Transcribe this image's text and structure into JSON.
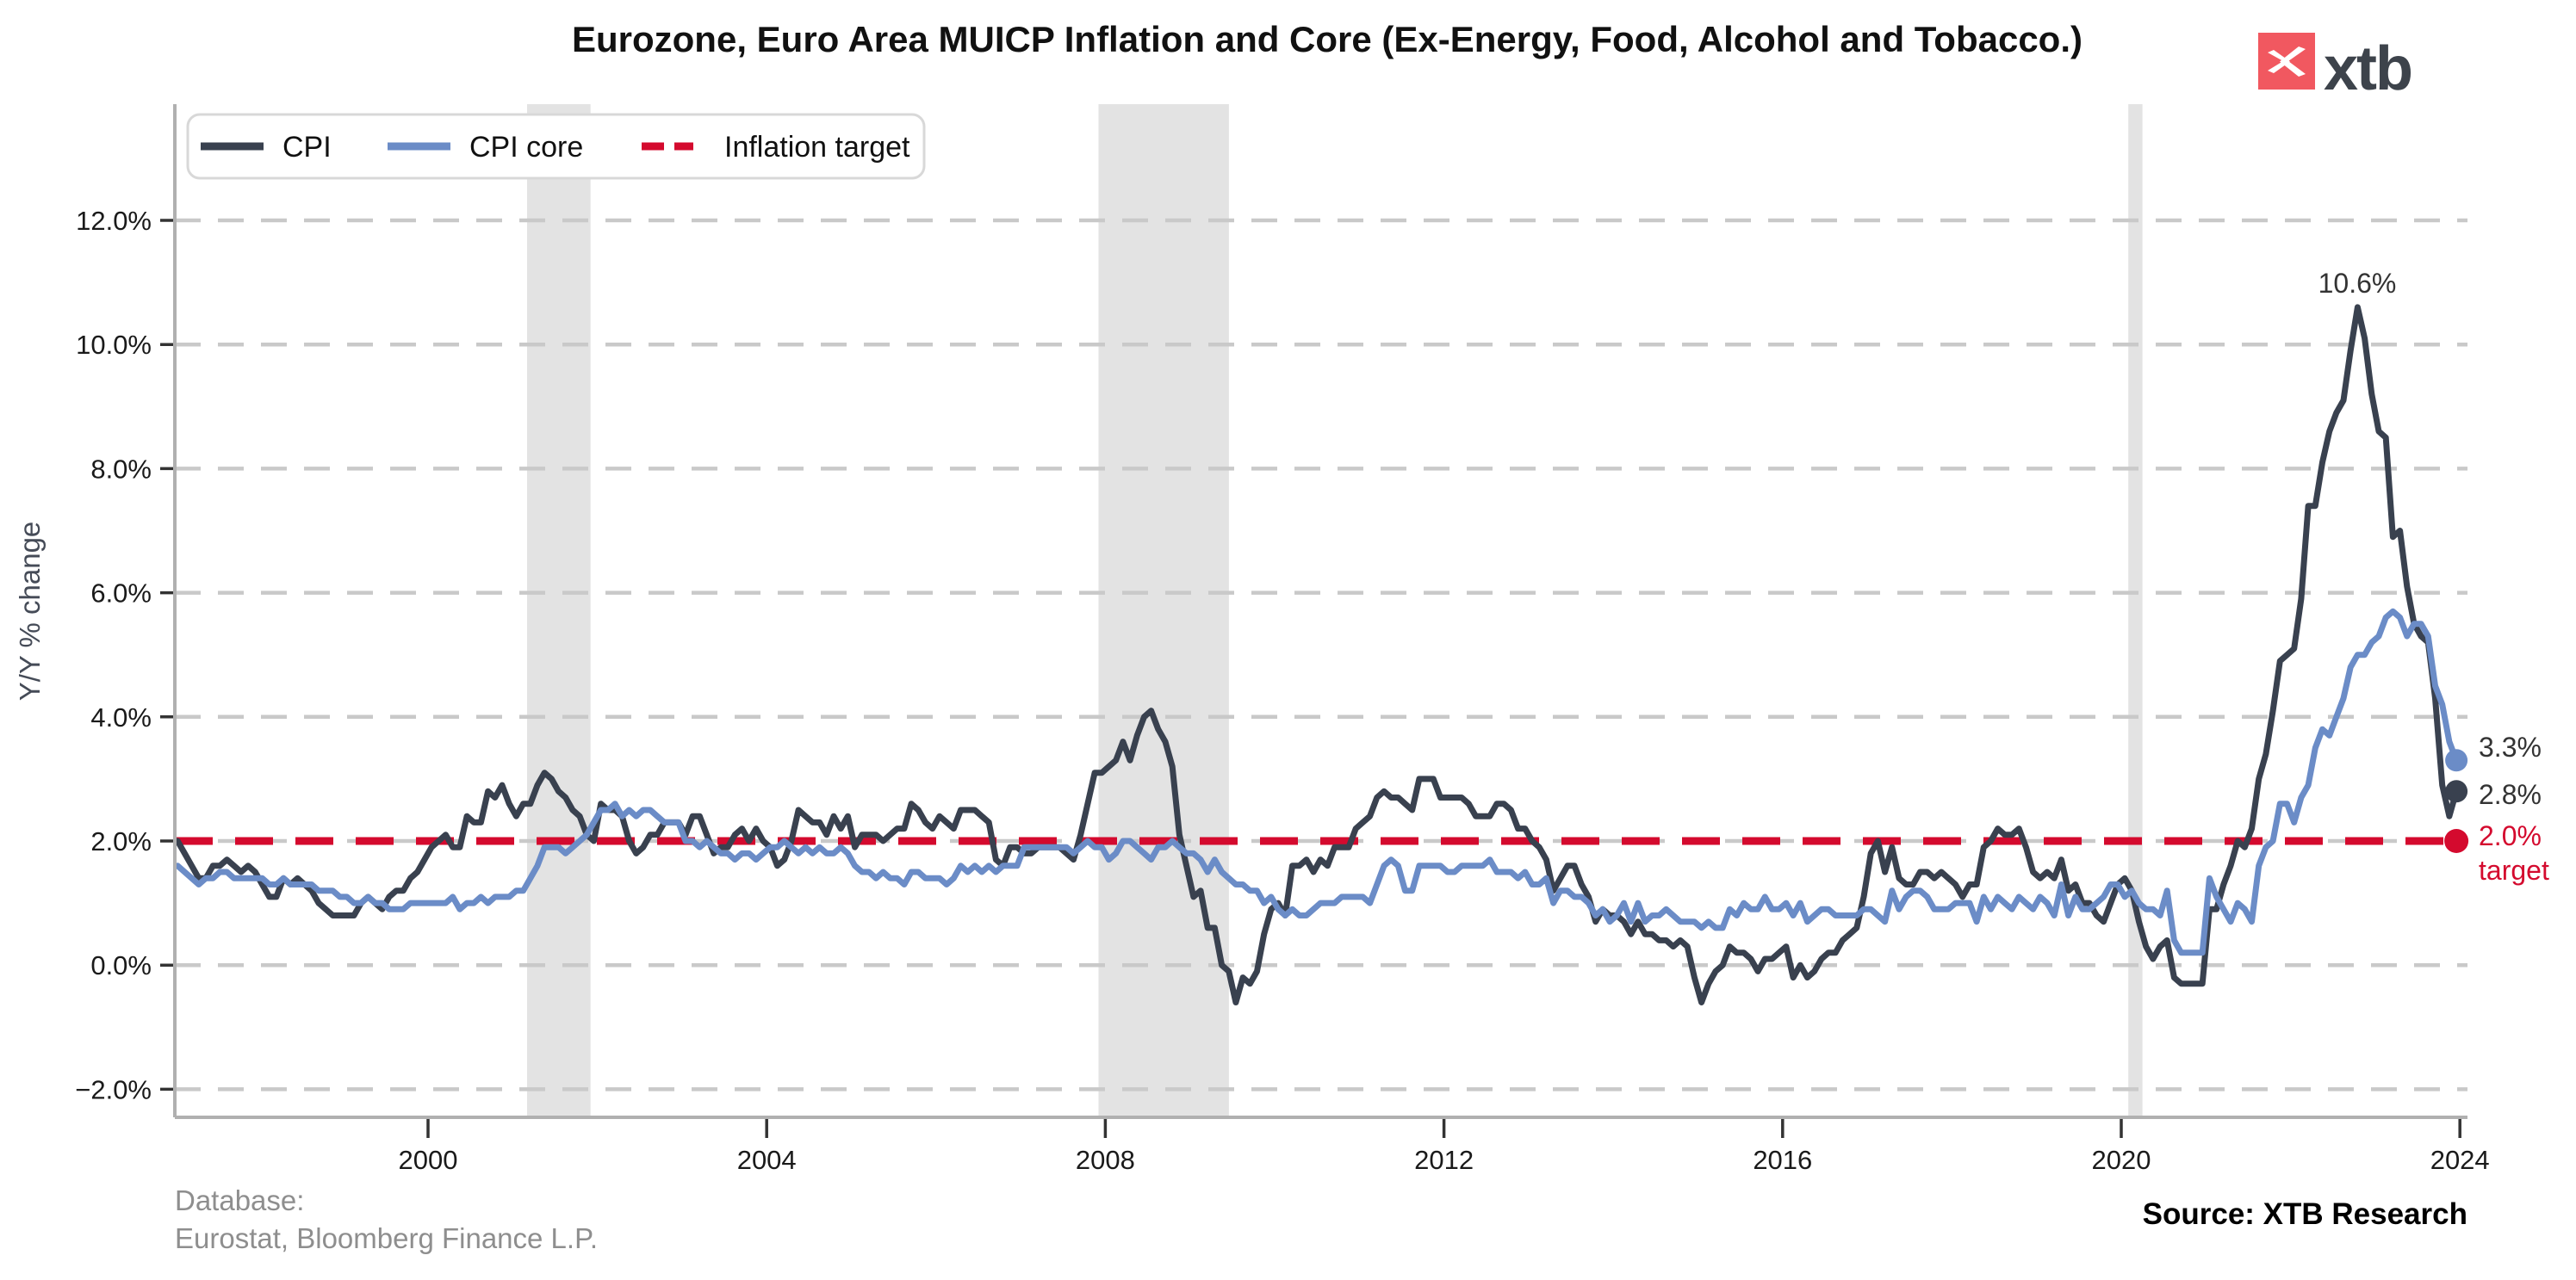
{
  "title": "Eurozone, Euro Area MUICP Inflation and Core (Ex-Energy, Food, Alcohol and Tobacco.)",
  "header_logo": {
    "brand_text": "xtb",
    "square_color": "#f15860",
    "text_color": "#3d434b"
  },
  "legend": {
    "items": [
      {
        "label": "CPI",
        "color": "#39414f",
        "style": "solid"
      },
      {
        "label": "CPI core",
        "color": "#6b8cc7",
        "style": "solid"
      },
      {
        "label": "Inflation target",
        "color": "#d40a2e",
        "style": "dashed"
      }
    ]
  },
  "y_axis": {
    "label": "Y/Y % change",
    "ticks": [
      "12.0%",
      "10.0%",
      "8.0%",
      "6.0%",
      "4.0%",
      "2.0%",
      "0.0%",
      "−2.0%"
    ]
  },
  "x_axis": {
    "ticks": [
      "2000",
      "2004",
      "2008",
      "2012",
      "2016",
      "2020",
      "2024"
    ]
  },
  "annotations": {
    "peak_label": "10.6%",
    "core_end_label": "3.3%",
    "cpi_end_label": "2.8%",
    "target_value_label": "2.0%",
    "target_word": "target"
  },
  "footer": {
    "database_label": "Database:",
    "database_sources": "Eurostat, Bloomberg Finance L.P.",
    "source_note": "Source: XTB Research"
  },
  "chart_data": {
    "type": "line",
    "title": "Eurozone, Euro Area MUICP Inflation and Core (Ex-Energy, Food, Alcohol and Tobacco.)",
    "ylabel": "Y/Y % change",
    "xlabel": "",
    "start_year": 1997,
    "frequency": "monthly",
    "ylim": [
      -2.45,
      13.9
    ],
    "grid_values": [
      12,
      10,
      8,
      6,
      4,
      2,
      0,
      -2
    ],
    "x_tick_years": [
      2000,
      2004,
      2008,
      2012,
      2016,
      2020,
      2024
    ],
    "grid_on": true,
    "legend_position": "upper left",
    "band_color": "#e3e3e3",
    "recession_bands": [
      [
        2001.17,
        2001.92
      ],
      [
        2007.92,
        2009.46
      ],
      [
        2020.083,
        2020.25
      ]
    ],
    "target": {
      "value": 2.0,
      "color": "#d40a2e",
      "label": "2.0% target"
    },
    "end_labels": {
      "cpi": "2.8%",
      "core": "3.3%",
      "peak": "10.6%"
    },
    "series": [
      {
        "name": "CPI",
        "color": "#39414f",
        "values": [
          2.0,
          1.8,
          1.6,
          1.4,
          1.4,
          1.6,
          1.6,
          1.7,
          1.6,
          1.5,
          1.6,
          1.5,
          1.3,
          1.1,
          1.1,
          1.4,
          1.3,
          1.4,
          1.3,
          1.2,
          1.0,
          0.9,
          0.8,
          0.8,
          0.8,
          0.8,
          1.0,
          1.1,
          1.0,
          0.9,
          1.1,
          1.2,
          1.2,
          1.4,
          1.5,
          1.7,
          1.9,
          2.0,
          2.1,
          1.9,
          1.9,
          2.4,
          2.3,
          2.3,
          2.8,
          2.7,
          2.9,
          2.6,
          2.4,
          2.6,
          2.6,
          2.9,
          3.1,
          3.0,
          2.8,
          2.7,
          2.5,
          2.4,
          2.1,
          2.0,
          2.6,
          2.5,
          2.5,
          2.4,
          2.0,
          1.8,
          1.9,
          2.1,
          2.1,
          2.3,
          2.3,
          2.3,
          2.1,
          2.4,
          2.4,
          2.1,
          1.8,
          1.9,
          1.9,
          2.1,
          2.2,
          2.0,
          2.2,
          2.0,
          1.9,
          1.6,
          1.7,
          2.0,
          2.5,
          2.4,
          2.3,
          2.3,
          2.1,
          2.4,
          2.2,
          2.4,
          1.9,
          2.1,
          2.1,
          2.1,
          2.0,
          2.1,
          2.2,
          2.2,
          2.6,
          2.5,
          2.3,
          2.2,
          2.4,
          2.3,
          2.2,
          2.5,
          2.5,
          2.5,
          2.4,
          2.3,
          1.7,
          1.6,
          1.9,
          1.9,
          1.8,
          1.8,
          1.9,
          1.9,
          1.9,
          1.9,
          1.8,
          1.7,
          2.1,
          2.6,
          3.1,
          3.1,
          3.2,
          3.3,
          3.6,
          3.3,
          3.7,
          4.0,
          4.1,
          3.8,
          3.6,
          3.2,
          2.1,
          1.6,
          1.1,
          1.2,
          0.6,
          0.6,
          0.0,
          -0.1,
          -0.6,
          -0.2,
          -0.3,
          -0.1,
          0.5,
          0.9,
          1.0,
          0.8,
          1.6,
          1.6,
          1.7,
          1.5,
          1.7,
          1.6,
          1.9,
          1.9,
          1.9,
          2.2,
          2.3,
          2.4,
          2.7,
          2.8,
          2.7,
          2.7,
          2.6,
          2.5,
          3.0,
          3.0,
          3.0,
          2.7,
          2.7,
          2.7,
          2.7,
          2.6,
          2.4,
          2.4,
          2.4,
          2.6,
          2.6,
          2.5,
          2.2,
          2.2,
          2.0,
          1.9,
          1.7,
          1.2,
          1.4,
          1.6,
          1.6,
          1.3,
          1.1,
          0.7,
          0.9,
          0.8,
          0.8,
          0.7,
          0.5,
          0.7,
          0.5,
          0.5,
          0.4,
          0.4,
          0.3,
          0.4,
          0.3,
          -0.2,
          -0.6,
          -0.3,
          -0.1,
          0.0,
          0.3,
          0.2,
          0.2,
          0.1,
          -0.1,
          0.1,
          0.1,
          0.2,
          0.3,
          -0.2,
          0.0,
          -0.2,
          -0.1,
          0.1,
          0.2,
          0.2,
          0.4,
          0.5,
          0.6,
          1.1,
          1.8,
          2.0,
          1.5,
          1.9,
          1.4,
          1.3,
          1.3,
          1.5,
          1.5,
          1.4,
          1.5,
          1.4,
          1.3,
          1.1,
          1.3,
          1.3,
          1.9,
          2.0,
          2.2,
          2.1,
          2.1,
          2.2,
          1.9,
          1.5,
          1.4,
          1.5,
          1.4,
          1.7,
          1.2,
          1.3,
          1.0,
          1.0,
          0.8,
          0.7,
          1.0,
          1.3,
          1.4,
          1.2,
          0.7,
          0.3,
          0.1,
          0.3,
          0.4,
          -0.2,
          -0.3,
          -0.3,
          -0.3,
          -0.3,
          0.9,
          0.9,
          1.3,
          1.6,
          2.0,
          1.9,
          2.2,
          3.0,
          3.4,
          4.1,
          4.9,
          5.0,
          5.1,
          5.9,
          7.4,
          7.4,
          8.1,
          8.6,
          8.9,
          9.1,
          9.9,
          10.6,
          10.1,
          9.2,
          8.6,
          8.5,
          6.9,
          7.0,
          6.1,
          5.5,
          5.3,
          5.2,
          4.3,
          2.9,
          2.4,
          2.8
        ]
      },
      {
        "name": "CPI core",
        "color": "#6b8cc7",
        "values": [
          1.6,
          1.5,
          1.4,
          1.3,
          1.4,
          1.4,
          1.5,
          1.5,
          1.4,
          1.4,
          1.4,
          1.4,
          1.4,
          1.3,
          1.3,
          1.4,
          1.3,
          1.3,
          1.3,
          1.3,
          1.2,
          1.2,
          1.2,
          1.1,
          1.1,
          1.0,
          1.0,
          1.1,
          1.0,
          1.0,
          0.9,
          0.9,
          0.9,
          1.0,
          1.0,
          1.0,
          1.0,
          1.0,
          1.0,
          1.1,
          0.9,
          1.0,
          1.0,
          1.1,
          1.0,
          1.1,
          1.1,
          1.1,
          1.2,
          1.2,
          1.4,
          1.6,
          1.9,
          1.9,
          1.9,
          1.8,
          1.9,
          2.0,
          2.1,
          2.3,
          2.5,
          2.5,
          2.6,
          2.4,
          2.5,
          2.4,
          2.5,
          2.5,
          2.4,
          2.3,
          2.3,
          2.3,
          2.0,
          2.0,
          1.9,
          2.0,
          1.9,
          1.8,
          1.8,
          1.7,
          1.8,
          1.8,
          1.7,
          1.8,
          1.9,
          1.9,
          2.0,
          1.9,
          1.8,
          1.9,
          1.8,
          1.9,
          1.8,
          1.8,
          1.9,
          1.8,
          1.6,
          1.5,
          1.5,
          1.4,
          1.5,
          1.4,
          1.4,
          1.3,
          1.5,
          1.5,
          1.4,
          1.4,
          1.4,
          1.3,
          1.4,
          1.6,
          1.5,
          1.6,
          1.5,
          1.6,
          1.5,
          1.6,
          1.6,
          1.6,
          1.9,
          1.9,
          1.9,
          1.9,
          1.9,
          1.9,
          1.9,
          1.8,
          1.9,
          2.0,
          1.9,
          1.9,
          1.7,
          1.8,
          2.0,
          2.0,
          1.9,
          1.8,
          1.7,
          1.9,
          1.9,
          2.0,
          1.9,
          1.8,
          1.8,
          1.7,
          1.5,
          1.7,
          1.5,
          1.4,
          1.3,
          1.3,
          1.2,
          1.2,
          1.0,
          1.1,
          0.9,
          0.8,
          0.9,
          0.8,
          0.8,
          0.9,
          1.0,
          1.0,
          1.0,
          1.1,
          1.1,
          1.1,
          1.1,
          1.0,
          1.3,
          1.6,
          1.7,
          1.6,
          1.2,
          1.2,
          1.6,
          1.6,
          1.6,
          1.6,
          1.5,
          1.5,
          1.6,
          1.6,
          1.6,
          1.6,
          1.7,
          1.5,
          1.5,
          1.5,
          1.4,
          1.5,
          1.3,
          1.3,
          1.4,
          1.0,
          1.2,
          1.2,
          1.1,
          1.1,
          1.0,
          0.8,
          0.9,
          0.7,
          0.8,
          1.0,
          0.7,
          1.0,
          0.7,
          0.8,
          0.8,
          0.9,
          0.8,
          0.7,
          0.7,
          0.7,
          0.6,
          0.7,
          0.6,
          0.6,
          0.9,
          0.8,
          1.0,
          0.9,
          0.9,
          1.1,
          0.9,
          0.9,
          1.0,
          0.8,
          1.0,
          0.7,
          0.8,
          0.9,
          0.9,
          0.8,
          0.8,
          0.8,
          0.8,
          0.9,
          0.9,
          0.8,
          0.7,
          1.2,
          0.9,
          1.1,
          1.2,
          1.2,
          1.1,
          0.9,
          0.9,
          0.9,
          1.0,
          1.0,
          1.0,
          0.7,
          1.1,
          0.9,
          1.1,
          1.0,
          0.9,
          1.1,
          1.0,
          0.9,
          1.1,
          1.0,
          0.8,
          1.3,
          0.8,
          1.1,
          0.9,
          0.9,
          1.0,
          1.1,
          1.3,
          1.3,
          1.1,
          1.2,
          1.0,
          0.9,
          0.9,
          0.8,
          1.2,
          0.4,
          0.2,
          0.2,
          0.2,
          0.2,
          1.4,
          1.1,
          0.9,
          0.7,
          1.0,
          0.9,
          0.7,
          1.6,
          1.9,
          2.0,
          2.6,
          2.6,
          2.3,
          2.7,
          2.9,
          3.5,
          3.8,
          3.7,
          4.0,
          4.3,
          4.8,
          5.0,
          5.0,
          5.2,
          5.3,
          5.6,
          5.7,
          5.6,
          5.3,
          5.5,
          5.5,
          5.3,
          4.5,
          4.2,
          3.6,
          3.3
        ]
      }
    ]
  }
}
